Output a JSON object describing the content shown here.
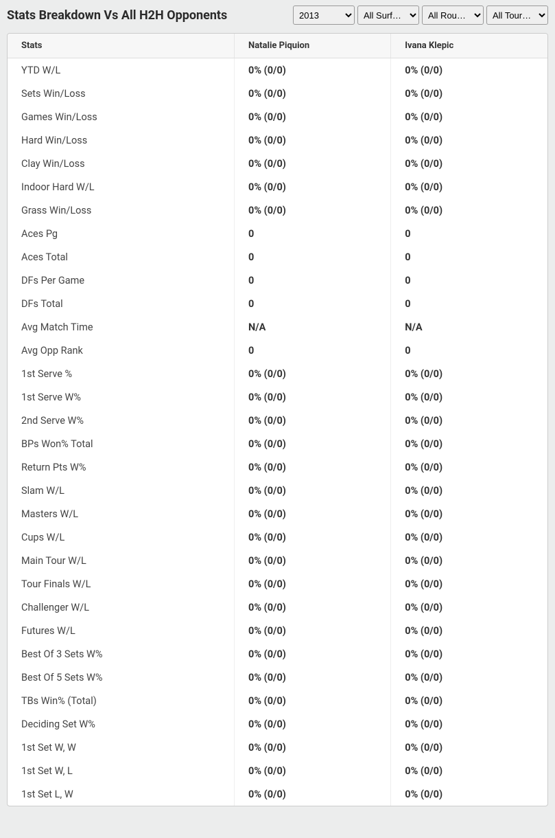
{
  "header": {
    "title": "Stats Breakdown Vs All H2H Opponents"
  },
  "filters": {
    "year": {
      "selected": "2013"
    },
    "surface": {
      "selected": "All Surf…"
    },
    "round": {
      "selected": "All Rou…"
    },
    "tour": {
      "selected": "All Tour…"
    }
  },
  "table": {
    "columns": [
      "Stats",
      "Natalie Piquion",
      "Ivana Klepic"
    ],
    "rows": [
      [
        "YTD W/L",
        "0% (0/0)",
        "0% (0/0)"
      ],
      [
        "Sets Win/Loss",
        "0% (0/0)",
        "0% (0/0)"
      ],
      [
        "Games Win/Loss",
        "0% (0/0)",
        "0% (0/0)"
      ],
      [
        "Hard Win/Loss",
        "0% (0/0)",
        "0% (0/0)"
      ],
      [
        "Clay Win/Loss",
        "0% (0/0)",
        "0% (0/0)"
      ],
      [
        "Indoor Hard W/L",
        "0% (0/0)",
        "0% (0/0)"
      ],
      [
        "Grass Win/Loss",
        "0% (0/0)",
        "0% (0/0)"
      ],
      [
        "Aces Pg",
        "0",
        "0"
      ],
      [
        "Aces Total",
        "0",
        "0"
      ],
      [
        "DFs Per Game",
        "0",
        "0"
      ],
      [
        "DFs Total",
        "0",
        "0"
      ],
      [
        "Avg Match Time",
        "N/A",
        "N/A"
      ],
      [
        "Avg Opp Rank",
        "0",
        "0"
      ],
      [
        "1st Serve %",
        "0% (0/0)",
        "0% (0/0)"
      ],
      [
        "1st Serve W%",
        "0% (0/0)",
        "0% (0/0)"
      ],
      [
        "2nd Serve W%",
        "0% (0/0)",
        "0% (0/0)"
      ],
      [
        "BPs Won% Total",
        "0% (0/0)",
        "0% (0/0)"
      ],
      [
        "Return Pts W%",
        "0% (0/0)",
        "0% (0/0)"
      ],
      [
        "Slam W/L",
        "0% (0/0)",
        "0% (0/0)"
      ],
      [
        "Masters W/L",
        "0% (0/0)",
        "0% (0/0)"
      ],
      [
        "Cups W/L",
        "0% (0/0)",
        "0% (0/0)"
      ],
      [
        "Main Tour W/L",
        "0% (0/0)",
        "0% (0/0)"
      ],
      [
        "Tour Finals W/L",
        "0% (0/0)",
        "0% (0/0)"
      ],
      [
        "Challenger W/L",
        "0% (0/0)",
        "0% (0/0)"
      ],
      [
        "Futures W/L",
        "0% (0/0)",
        "0% (0/0)"
      ],
      [
        "Best Of 3 Sets W%",
        "0% (0/0)",
        "0% (0/0)"
      ],
      [
        "Best Of 5 Sets W%",
        "0% (0/0)",
        "0% (0/0)"
      ],
      [
        "TBs Win% (Total)",
        "0% (0/0)",
        "0% (0/0)"
      ],
      [
        "Deciding Set W%",
        "0% (0/0)",
        "0% (0/0)"
      ],
      [
        "1st Set W, W",
        "0% (0/0)",
        "0% (0/0)"
      ],
      [
        "1st Set W, L",
        "0% (0/0)",
        "0% (0/0)"
      ],
      [
        "1st Set L, W",
        "0% (0/0)",
        "0% (0/0)"
      ]
    ]
  },
  "styling": {
    "body_bg": "#eceded",
    "table_bg": "#ffffff",
    "header_bg": "#f7f7f7",
    "border_color": "#ddd",
    "text_color": "#333",
    "title_fontsize": 18,
    "cell_fontsize": 14.5,
    "header_fontsize": 13
  }
}
